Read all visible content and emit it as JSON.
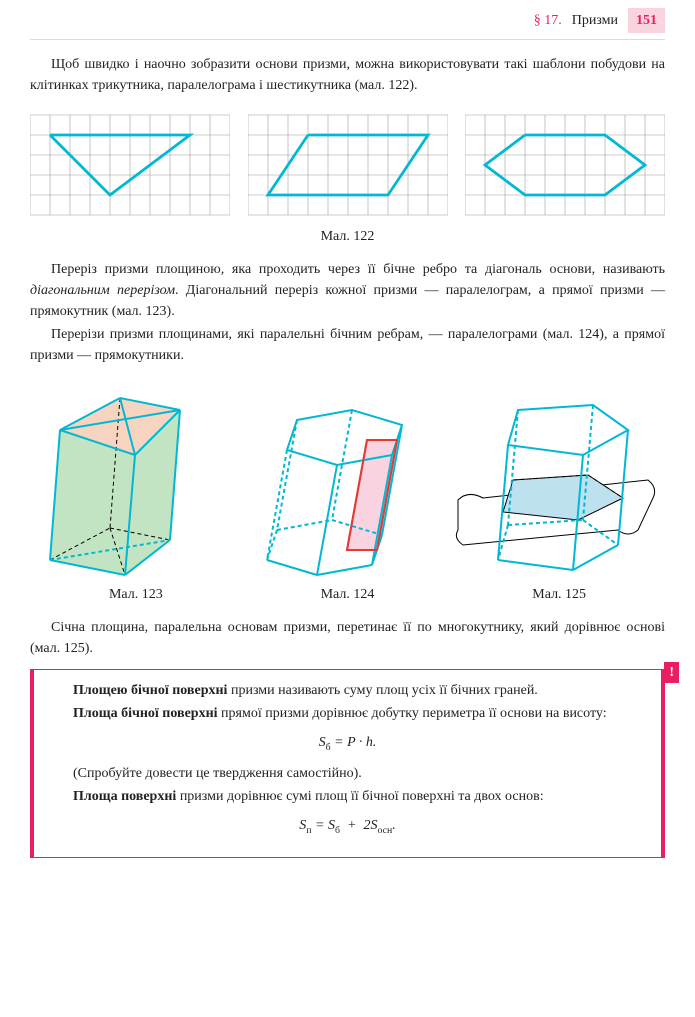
{
  "header": {
    "section": "§ 17.",
    "title": "Призми",
    "page": "151"
  },
  "p1": "Щоб швидко і наочно зобразити основи призми, можна використовувати такі шаблони побудови на клітинках трикутника, паралелограма і шестикутника (мал. 122).",
  "fig122_caption": "Мал. 122",
  "p2a": "Переріз призми площиною, яка проходить через її бічне ребро та діагональ основи, називають ",
  "p2b": "діагональним перерізом",
  "p2c": ". Діагональний переріз кожної призми — паралелограм, а прямої призми — прямокутник (мал. 123).",
  "p3": "Перерізи призми площинами, які паралельні бічним ребрам, — паралелограми (мал. 124), а прямої призми — прямокутники.",
  "fig123_caption": "Мал. 123",
  "fig124_caption": "Мал. 124",
  "fig125_caption": "Мал. 125",
  "p4": "Січна площина, паралельна основам призми, перетинає її по многокутнику, який дорівнює основі (мал. 125).",
  "def": {
    "d1a": "Площею бічної поверхні",
    "d1b": " призми називають суму площ усіх її бічних граней.",
    "d2a": "Площа бічної поверхні",
    "d2b": " прямої призми дорівнює добутку периметра її основи на висоту:",
    "f1": "Sб = P · h.",
    "d3": "(Спробуйте довести це твердження самостійно).",
    "d4a": "Площа поверхні",
    "d4b": " призми дорівнює сумі площ її бічної поверхні та двох основ:",
    "f2": "Sп = Sб + 2Sосн."
  },
  "grid": {
    "stroke": "#999999",
    "stroke_width": 0.5,
    "cell": 18,
    "shape_stroke": "#00b8d4",
    "shape_width": 2.5
  },
  "fig122": {
    "triangle": [
      [
        1,
        1
      ],
      [
        8,
        1
      ],
      [
        4,
        4
      ],
      [
        1,
        1
      ]
    ],
    "parallelogram": [
      [
        3,
        1
      ],
      [
        9,
        1
      ],
      [
        7,
        4
      ],
      [
        1,
        4
      ],
      [
        3,
        1
      ]
    ],
    "hexagon": [
      [
        3,
        1
      ],
      [
        7,
        1
      ],
      [
        9,
        2.5
      ],
      [
        7,
        4
      ],
      [
        3,
        4
      ],
      [
        1,
        2.5
      ],
      [
        3,
        1
      ]
    ]
  },
  "prisms": {
    "stroke": "#00b8d4",
    "width": 2,
    "fill_green": "#c3e4c3",
    "fill_peach": "#f7d4c0",
    "fill_pink": "#f9d4e0",
    "fill_blue": "#bde1ee",
    "dash": "4,3",
    "red": "#e53935"
  }
}
